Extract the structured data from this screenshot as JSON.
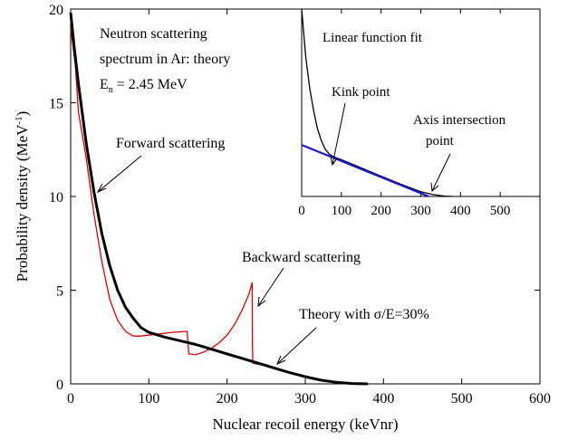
{
  "chart_data": [
    {
      "type": "line",
      "xlabel": "Nuclear recoil energy (keVnr)",
      "ylabel": "Probability density (MeV",
      "ylabel_sup": "-1",
      "ylabel_tail": ")",
      "xlim": [
        0,
        600
      ],
      "ylim": [
        0,
        20
      ],
      "xticks": [
        0,
        100,
        200,
        300,
        400,
        500,
        600
      ],
      "yticks": [
        0,
        5,
        10,
        15,
        20
      ],
      "grid": false,
      "annotations": {
        "title_line1": "Neutron scattering",
        "title_line2": "spectrum in Ar: theory",
        "energy_prefix": "E",
        "energy_sub": "n",
        "energy_suffix": " = 2.45 MeV",
        "forward": "Forward scattering",
        "backward": "Backward scattering",
        "theory": "Theory with σ/E=30%"
      },
      "series": [
        {
          "color": "#000000",
          "x": [
            0,
            5,
            10,
            20,
            30,
            40,
            50,
            60,
            70,
            80,
            90,
            100,
            120,
            140,
            160,
            180,
            200,
            220,
            240,
            260,
            280,
            300,
            320,
            340,
            360,
            380
          ],
          "y": [
            19.8,
            17.8,
            16.0,
            12.8,
            10.2,
            8.0,
            6.3,
            5.0,
            4.1,
            3.5,
            3.0,
            2.75,
            2.5,
            2.3,
            2.1,
            1.85,
            1.6,
            1.35,
            1.1,
            0.85,
            0.6,
            0.38,
            0.2,
            0.08,
            0.02,
            0.0
          ]
        },
        {
          "color": "#dd0000",
          "x": [
            0,
            3,
            6,
            10,
            20,
            30,
            40,
            50,
            60,
            70,
            80,
            90,
            100,
            110,
            120,
            130,
            140,
            149,
            150,
            151,
            160,
            170,
            180,
            190,
            200,
            210,
            220,
            228,
            232,
            232.5,
            233,
            240,
            260,
            280,
            300,
            320,
            340,
            360,
            380
          ],
          "y": [
            19.0,
            18.0,
            17.0,
            14.5,
            12.0,
            9.0,
            6.5,
            4.5,
            3.4,
            2.8,
            2.55,
            2.55,
            2.6,
            2.65,
            2.7,
            2.75,
            2.78,
            2.8,
            2.2,
            1.6,
            1.55,
            1.7,
            1.9,
            2.2,
            2.6,
            3.2,
            4.0,
            4.8,
            5.4,
            2.0,
            1.1,
            1.05,
            0.85,
            0.6,
            0.38,
            0.2,
            0.08,
            0.02,
            0.0
          ]
        }
      ]
    },
    {
      "type": "line",
      "title": "Linear function fit",
      "xlim": [
        0,
        600
      ],
      "xticks": [
        0,
        100,
        200,
        300,
        400,
        500
      ],
      "annotations": {
        "kink": "Kink point",
        "axis_line1": "Axis intersection",
        "axis_line2": "point"
      },
      "series": [
        {
          "color": "#000000",
          "x": [
            0,
            10,
            20,
            30,
            40,
            50,
            60,
            70,
            80,
            100,
            150,
            200,
            250,
            300,
            330,
            360,
            380
          ],
          "y": [
            10.0,
            7.5,
            5.8,
            4.6,
            3.6,
            2.95,
            2.5,
            2.25,
            2.12,
            1.96,
            1.52,
            1.08,
            0.65,
            0.25,
            0.1,
            0.02,
            0.0
          ]
        },
        {
          "color": "#1a1acc",
          "x": [
            0,
            320
          ],
          "y": [
            2.75,
            0.0
          ]
        }
      ]
    }
  ]
}
